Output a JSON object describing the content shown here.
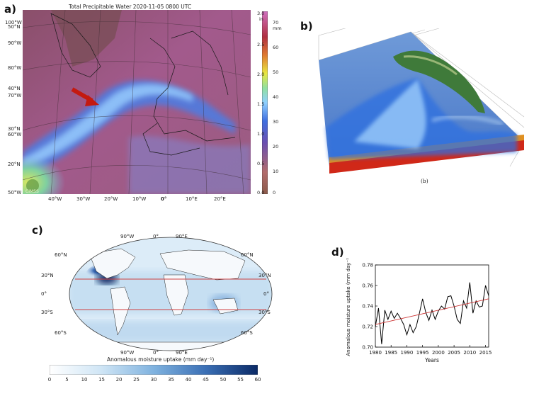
{
  "panels": {
    "a": {
      "letter": "a)",
      "title": "Total Precipitable Water  2020-11-05 0800 UTC",
      "lat_labels": [
        "100°W",
        "50°N",
        "90°W",
        "80°W",
        "40°N",
        "70°W",
        "30°N",
        "60°W",
        "20°N",
        "50°W"
      ],
      "lon_labels": [
        "40°W",
        "30°W",
        "20°W",
        "10°W",
        "0°",
        "10°E",
        "20°E"
      ],
      "colorbar_in": [
        "3.0",
        "2.5",
        "2.0",
        "1.5",
        "1.0",
        "0.5",
        "0.0"
      ],
      "colorbar_in_unit": "in",
      "colorbar_mm": [
        "70",
        "60",
        "50",
        "40",
        "30",
        "20",
        "10",
        "0"
      ],
      "colorbar_mm_unit": "mm",
      "logo": "CIMSS"
    },
    "b": {
      "letter": "b)",
      "caption": "(b)"
    },
    "c": {
      "letter": "c)",
      "top_lon": [
        "90°W",
        "0°",
        "90°E"
      ],
      "bottom_lon": [
        "90°W",
        "0°",
        "90°E"
      ],
      "lat_left": [
        "60°N",
        "30°N",
        "0°",
        "30°S",
        "60°S"
      ],
      "lat_right": [
        "60°N",
        "30°N",
        "0°",
        "30°S",
        "60°S"
      ],
      "xlabel": "Anomalous moisture uptake (mm day⁻¹)",
      "colorbar_ticks": [
        "0",
        "5",
        "10",
        "15",
        "20",
        "25",
        "30",
        "35",
        "40",
        "45",
        "50",
        "55",
        "60"
      ]
    },
    "d": {
      "letter": "d)"
    }
  },
  "chart_data": {
    "type": "line",
    "title": "",
    "xlabel": "Years",
    "ylabel": "Anomalous moisture uptake (mm day⁻¹)",
    "xlim": [
      1980,
      2016
    ],
    "ylim": [
      0.7,
      0.78
    ],
    "xticks": [
      "1980",
      "1985",
      "1990",
      "1995",
      "2000",
      "2005",
      "2010",
      "2015"
    ],
    "yticks": [
      "0.70",
      "0.72",
      "0.74",
      "0.76",
      "0.78"
    ],
    "x": [
      1980,
      1981,
      1982,
      1983,
      1984,
      1985,
      1986,
      1987,
      1988,
      1989,
      1990,
      1991,
      1992,
      1993,
      1994,
      1995,
      1996,
      1997,
      1998,
      1999,
      2000,
      2001,
      2002,
      2003,
      2004,
      2005,
      2006,
      2007,
      2008,
      2009,
      2010,
      2011,
      2012,
      2013,
      2014,
      2015,
      2016
    ],
    "series": [
      {
        "values": [
          0.72,
          0.738,
          0.703,
          0.736,
          0.727,
          0.735,
          0.728,
          0.733,
          0.728,
          0.722,
          0.712,
          0.722,
          0.714,
          0.72,
          0.733,
          0.747,
          0.734,
          0.726,
          0.736,
          0.727,
          0.735,
          0.74,
          0.737,
          0.749,
          0.75,
          0.74,
          0.727,
          0.723,
          0.745,
          0.738,
          0.763,
          0.733,
          0.745,
          0.739,
          0.74,
          0.76,
          0.75
        ],
        "color": "#000000"
      },
      {
        "values": [
          0.722,
          0.747
        ],
        "x": [
          1980,
          2016
        ],
        "color": "#cc3333"
      }
    ]
  }
}
